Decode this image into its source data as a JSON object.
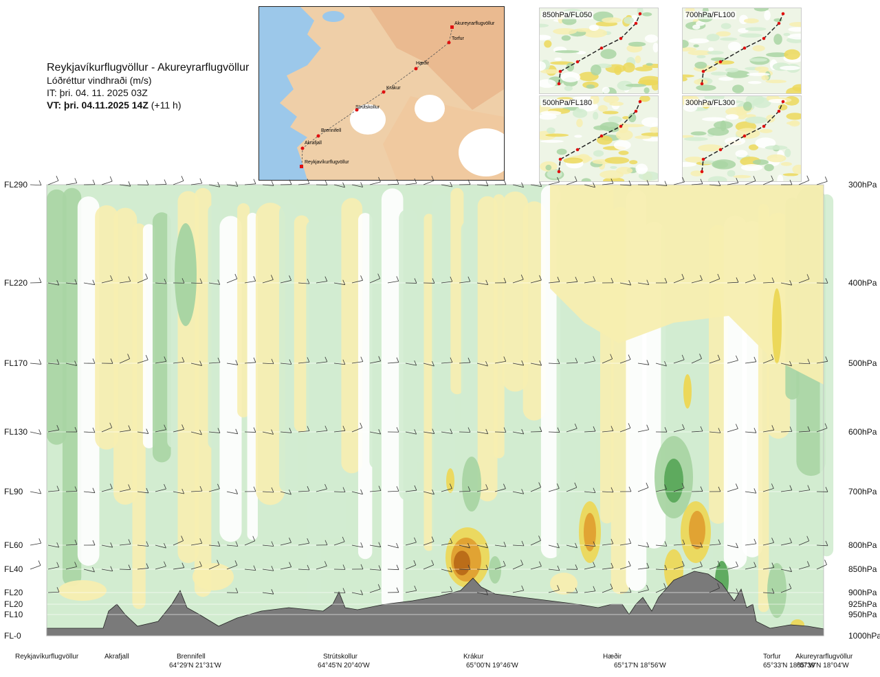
{
  "title": {
    "route": "Reykjavíkurflugvöllur - Akureyrarflugvöllur",
    "parameter": "Lóðréttur vindhraði (m/s)",
    "issue_time": "IT: þri. 04. 11. 2025 03Z",
    "valid_time_bold": "VT: þri. 04.11.2025 14Z",
    "valid_offset": "(+11 h)"
  },
  "route_map": {
    "labels": [
      "Akureyrarflugvöllur",
      "Torfur",
      "Hæðir",
      "Krákur",
      "Strútskollur",
      "Brennifell",
      "Akrafjall",
      "Reykjavíkurflugvöllur"
    ]
  },
  "mini_maps": [
    {
      "label": "850hPa/FL050"
    },
    {
      "label": "700hPa/FL100"
    },
    {
      "label": "500hPa/FL180"
    },
    {
      "label": "300hPa/FL300"
    }
  ],
  "colors": {
    "light_green": "#d2ecd0",
    "mid_green": "#a9d5a3",
    "dark_green": "#5aa85a",
    "light_yellow": "#f7eeb0",
    "yellow": "#ecd85a",
    "orange": "#e0a030",
    "dark_orange": "#b86a18",
    "terrain": "#7a7a7a",
    "white": "#ffffff"
  },
  "chart_data": {
    "type": "heatmap",
    "title": "Lóðréttur vindhraði (m/s)",
    "flight_levels": [
      {
        "fl": "FL290",
        "hpa": "300hPa"
      },
      {
        "fl": "FL220",
        "hpa": "400hPa"
      },
      {
        "fl": "FL170",
        "hpa": "500hPa"
      },
      {
        "fl": "FL130",
        "hpa": "600hPa"
      },
      {
        "fl": "FL90",
        "hpa": "700hPa"
      },
      {
        "fl": "FL60",
        "hpa": "800hPa"
      },
      {
        "fl": "FL40",
        "hpa": "850hPa"
      },
      {
        "fl": "FL20",
        "hpa": "900hPa"
      },
      {
        "fl": "FL20",
        "hpa": "925hPa"
      },
      {
        "fl": "FL10",
        "hpa": "950hPa"
      },
      {
        "fl": "FL-0",
        "hpa": "1000hPa"
      }
    ],
    "waypoints": [
      {
        "name": "Reykjavíkurflugvöllur",
        "coord": ""
      },
      {
        "name": "Akrafjall",
        "coord": ""
      },
      {
        "name": "Brennifell",
        "coord": "64°29'N 21°31'W"
      },
      {
        "name": "Strútskollur",
        "coord": "64°45'N 20°40'W"
      },
      {
        "name": "Krákur",
        "coord": "65°00'N 19°46'W"
      },
      {
        "name": "Hæðir",
        "coord": "65°17'N 18°56'W"
      },
      {
        "name": "Torfur",
        "coord": "65°33'N 18°07'W"
      },
      {
        "name": "Akureyrarflugvöllur",
        "coord": "65°39'N 18°04'W"
      }
    ]
  }
}
